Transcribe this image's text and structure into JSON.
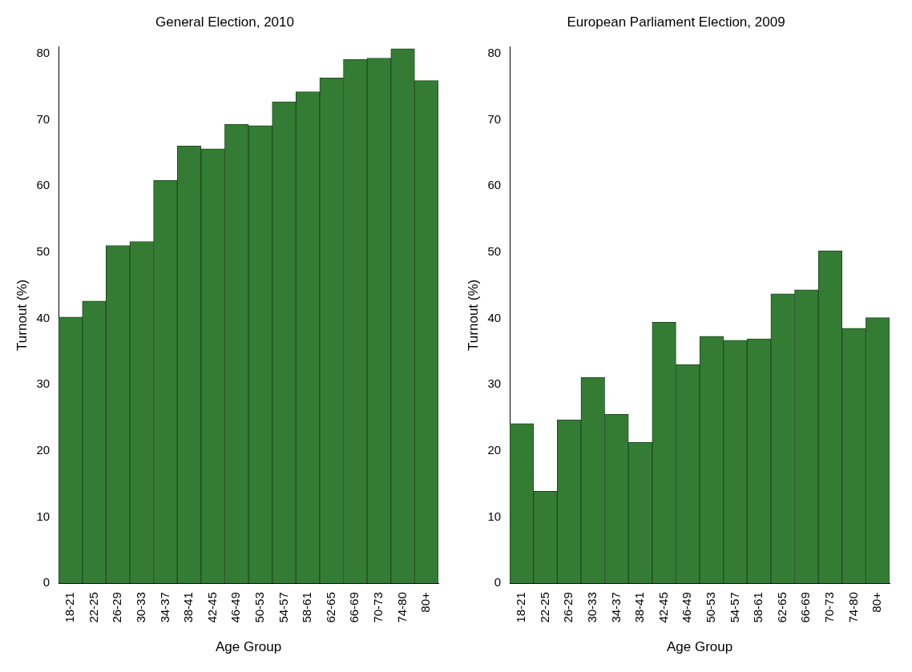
{
  "chart_data": [
    {
      "type": "bar",
      "title": "General Election, 2010",
      "xlabel": "Age Group",
      "ylabel": "Turnout (%)",
      "categories": [
        "18-21",
        "22-25",
        "26-29",
        "30-33",
        "34-37",
        "38-41",
        "42-45",
        "46-49",
        "50-53",
        "54-57",
        "58-61",
        "62-65",
        "66-69",
        "70-73",
        "74-80",
        "80+"
      ],
      "values": [
        40.2,
        42.6,
        51.0,
        51.6,
        60.8,
        66.0,
        65.6,
        69.3,
        69.1,
        72.7,
        74.2,
        76.3,
        79.1,
        79.3,
        80.7,
        75.9
      ],
      "color": "#347c34",
      "ylim": [
        0,
        81
      ],
      "yticks": [
        0,
        10,
        20,
        30,
        40,
        50,
        60,
        70,
        80
      ],
      "grid": false,
      "legend": false
    },
    {
      "type": "bar",
      "title": "European Parliament Election, 2009",
      "xlabel": "Age Group",
      "ylabel": "Turnout (%)",
      "categories": [
        "18-21",
        "22-25",
        "26-29",
        "30-33",
        "34-37",
        "38-41",
        "42-45",
        "46-49",
        "50-53",
        "54-57",
        "58-61",
        "62-65",
        "66-69",
        "70-73",
        "74-80",
        "80+"
      ],
      "values": [
        24.1,
        13.9,
        24.7,
        31.1,
        25.5,
        21.3,
        39.4,
        33.0,
        37.3,
        36.7,
        36.9,
        43.7,
        44.3,
        50.2,
        38.5,
        40.1
      ],
      "color": "#347c34",
      "ylim": [
        0,
        81
      ],
      "yticks": [
        0,
        10,
        20,
        30,
        40,
        50,
        60,
        70,
        80
      ],
      "grid": false,
      "legend": false
    }
  ]
}
